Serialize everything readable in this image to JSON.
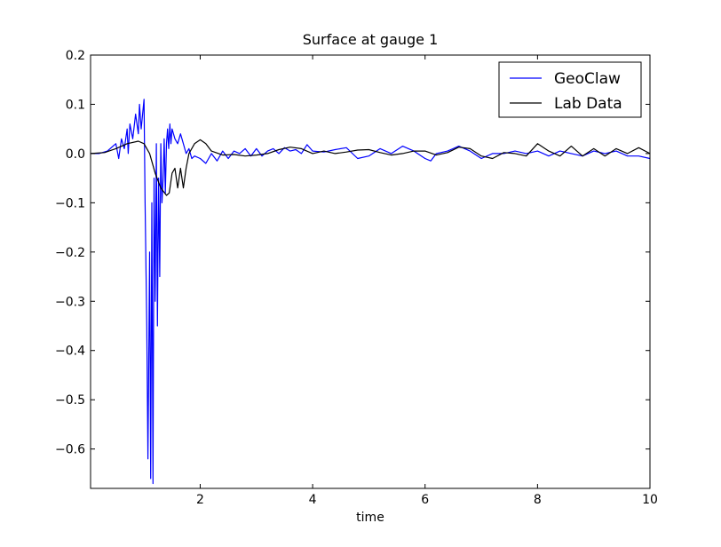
{
  "chart_data": {
    "type": "line",
    "title": "Surface at gauge 1",
    "xlabel": "time",
    "ylabel": "",
    "xlim": [
      0.05,
      10
    ],
    "ylim": [
      -0.68,
      0.2
    ],
    "xticks": [
      2,
      4,
      6,
      8,
      10
    ],
    "xtick_labels": [
      "2",
      "4",
      "6",
      "8",
      "10"
    ],
    "yticks": [
      0.2,
      0.1,
      0.0,
      -0.1,
      -0.2,
      -0.3,
      -0.4,
      -0.5,
      -0.6
    ],
    "ytick_labels": [
      "0.2",
      "0.1",
      "0.0",
      "−0.1",
      "−0.2",
      "−0.3",
      "−0.4",
      "−0.5",
      "−0.6"
    ],
    "grid": false,
    "legend_position": "top-right",
    "series": [
      {
        "name": "GeoClaw",
        "color": "#0000ff",
        "x": [
          0.05,
          0.2,
          0.35,
          0.5,
          0.55,
          0.6,
          0.65,
          0.7,
          0.72,
          0.75,
          0.8,
          0.85,
          0.9,
          0.92,
          0.95,
          1.0,
          1.02,
          1.05,
          1.07,
          1.1,
          1.12,
          1.14,
          1.16,
          1.18,
          1.2,
          1.22,
          1.24,
          1.26,
          1.28,
          1.3,
          1.32,
          1.34,
          1.36,
          1.38,
          1.4,
          1.42,
          1.44,
          1.46,
          1.48,
          1.5,
          1.55,
          1.6,
          1.65,
          1.7,
          1.75,
          1.8,
          1.85,
          1.9,
          2.0,
          2.1,
          2.2,
          2.3,
          2.4,
          2.5,
          2.6,
          2.7,
          2.8,
          2.9,
          3.0,
          3.1,
          3.2,
          3.3,
          3.4,
          3.5,
          3.6,
          3.7,
          3.8,
          3.9,
          4.0,
          4.2,
          4.4,
          4.6,
          4.8,
          5.0,
          5.2,
          5.4,
          5.6,
          5.8,
          6.0,
          6.1,
          6.2,
          6.4,
          6.6,
          6.8,
          7.0,
          7.2,
          7.4,
          7.6,
          7.8,
          8.0,
          8.2,
          8.4,
          8.6,
          8.8,
          9.0,
          9.2,
          9.4,
          9.6,
          9.8,
          10.0
        ],
        "y": [
          0.0,
          0.0,
          0.005,
          0.02,
          -0.01,
          0.03,
          0.01,
          0.05,
          0.0,
          0.06,
          0.03,
          0.08,
          0.04,
          0.1,
          0.05,
          0.11,
          -0.1,
          -0.35,
          -0.62,
          -0.2,
          -0.66,
          -0.1,
          -0.67,
          -0.05,
          -0.3,
          0.02,
          -0.35,
          -0.05,
          -0.25,
          0.02,
          -0.1,
          -0.05,
          0.03,
          -0.08,
          0.02,
          0.05,
          0.01,
          0.06,
          0.02,
          0.05,
          0.03,
          0.02,
          0.04,
          0.02,
          0.0,
          0.01,
          -0.01,
          -0.005,
          -0.01,
          -0.02,
          0.0,
          -0.015,
          0.005,
          -0.01,
          0.005,
          0.0,
          0.01,
          -0.005,
          0.01,
          -0.005,
          0.005,
          0.01,
          0.0,
          0.012,
          0.005,
          0.008,
          0.0,
          0.018,
          0.005,
          0.003,
          0.008,
          0.012,
          -0.01,
          -0.005,
          0.01,
          0.0,
          0.015,
          0.005,
          -0.01,
          -0.015,
          0.0,
          0.005,
          0.015,
          0.005,
          -0.01,
          0.0,
          0.0,
          0.005,
          0.0,
          0.005,
          -0.005,
          0.005,
          0.0,
          -0.005,
          0.005,
          0.0,
          0.005,
          -0.005,
          -0.005,
          -0.01
        ]
      },
      {
        "name": "Lab Data",
        "color": "#000000",
        "x": [
          0.05,
          0.3,
          0.5,
          0.7,
          0.9,
          1.0,
          1.1,
          1.2,
          1.3,
          1.4,
          1.45,
          1.5,
          1.55,
          1.6,
          1.65,
          1.7,
          1.75,
          1.8,
          1.9,
          2.0,
          2.1,
          2.2,
          2.4,
          2.6,
          2.8,
          3.0,
          3.2,
          3.4,
          3.6,
          3.8,
          4.0,
          4.2,
          4.4,
          4.6,
          4.8,
          5.0,
          5.2,
          5.4,
          5.6,
          5.8,
          6.0,
          6.2,
          6.4,
          6.6,
          6.8,
          7.0,
          7.2,
          7.4,
          7.6,
          7.8,
          8.0,
          8.2,
          8.4,
          8.6,
          8.8,
          9.0,
          9.2,
          9.4,
          9.6,
          9.8,
          10.0
        ],
        "y": [
          0.0,
          0.002,
          0.01,
          0.02,
          0.025,
          0.02,
          0.0,
          -0.04,
          -0.07,
          -0.085,
          -0.08,
          -0.04,
          -0.03,
          -0.07,
          -0.03,
          -0.07,
          -0.03,
          0.0,
          0.02,
          0.028,
          0.02,
          0.005,
          -0.003,
          -0.002,
          -0.005,
          -0.003,
          0.0,
          0.008,
          0.013,
          0.01,
          0.0,
          0.005,
          0.0,
          0.003,
          0.007,
          0.008,
          0.002,
          -0.003,
          0.0,
          0.005,
          0.005,
          -0.003,
          0.002,
          0.013,
          0.01,
          -0.005,
          -0.01,
          0.002,
          0.0,
          -0.005,
          0.02,
          0.005,
          -0.005,
          0.015,
          -0.005,
          0.01,
          -0.005,
          0.01,
          0.0,
          0.012,
          0.0
        ]
      }
    ]
  }
}
